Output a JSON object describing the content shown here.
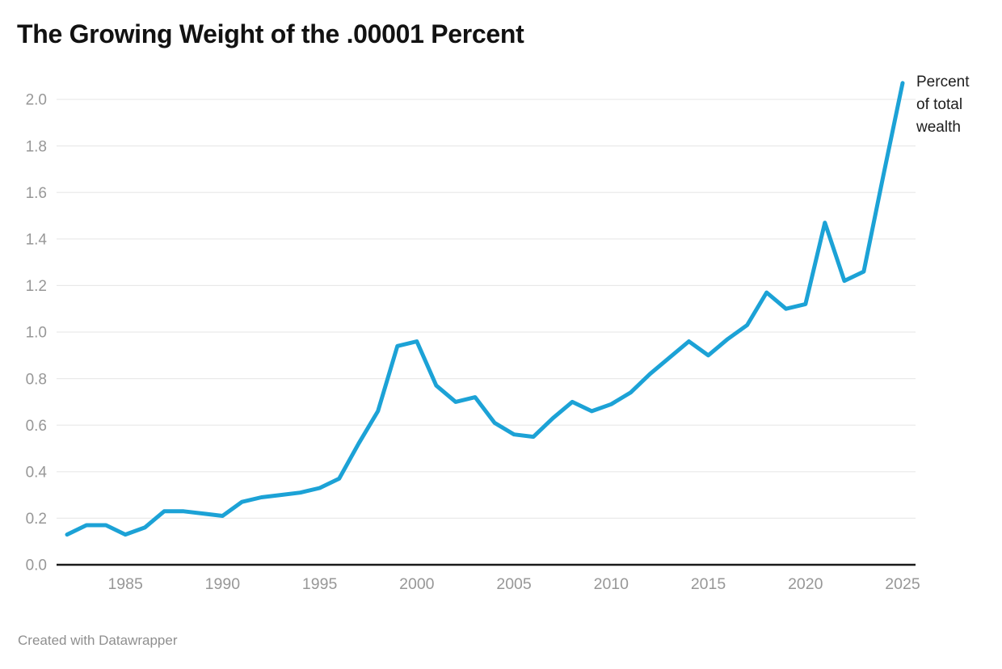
{
  "title": "The Growing Weight of the .00001 Percent",
  "legend": {
    "label": "Percent of total wealth"
  },
  "footer": {
    "text": "Created with Datawrapper"
  },
  "colors": {
    "line": "#1CA2D6",
    "axis": "#1a1a1a",
    "grid": "#e9e9e9",
    "tick_label": "#979797",
    "text": "#1d1d1d"
  },
  "chart_data": {
    "type": "line",
    "title": "The Growing Weight of the .00001 Percent",
    "ylabel": "Percent of total wealth",
    "x": [
      1982,
      1983,
      1984,
      1985,
      1986,
      1987,
      1988,
      1989,
      1990,
      1991,
      1992,
      1993,
      1994,
      1995,
      1996,
      1997,
      1998,
      1999,
      2000,
      2001,
      2002,
      2003,
      2004,
      2005,
      2006,
      2007,
      2008,
      2009,
      2010,
      2011,
      2012,
      2013,
      2014,
      2015,
      2016,
      2017,
      2018,
      2019,
      2020,
      2021,
      2022,
      2023,
      2024,
      2025
    ],
    "series": [
      {
        "name": "Percent of total wealth",
        "values": [
          0.13,
          0.17,
          0.17,
          0.13,
          0.16,
          0.23,
          0.23,
          0.22,
          0.21,
          0.27,
          0.29,
          0.3,
          0.31,
          0.33,
          0.37,
          0.52,
          0.66,
          0.94,
          0.96,
          0.77,
          0.7,
          0.72,
          0.61,
          0.56,
          0.55,
          0.63,
          0.7,
          0.66,
          0.69,
          0.74,
          0.82,
          0.89,
          0.96,
          0.9,
          0.97,
          1.03,
          1.17,
          1.1,
          1.12,
          1.47,
          1.22,
          1.26,
          1.67,
          2.07
        ]
      }
    ],
    "xlim": [
      1982,
      2025
    ],
    "ylim": [
      0.0,
      2.08
    ],
    "yticks": [
      0.0,
      0.2,
      0.4,
      0.6,
      0.8,
      1.0,
      1.2,
      1.4,
      1.6,
      1.8,
      2.0
    ],
    "xticks": [
      1985,
      1990,
      1995,
      2000,
      2005,
      2010,
      2015,
      2020,
      2025
    ],
    "grid": true,
    "legend_position": "top-right",
    "footer": "Created with Datawrapper"
  }
}
